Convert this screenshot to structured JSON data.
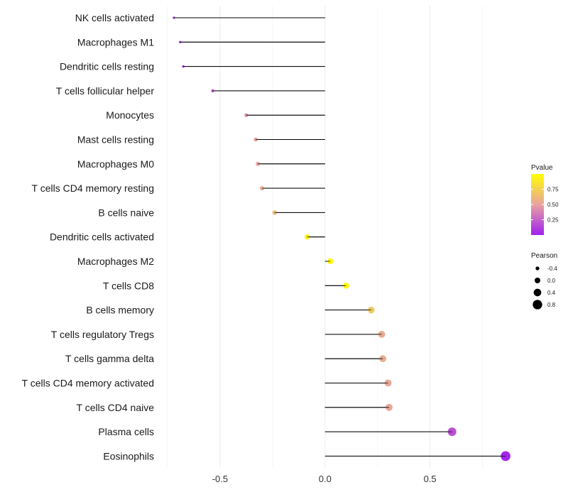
{
  "chart_data": {
    "type": "lollipop",
    "title": "",
    "xlabel": "",
    "ylabel": "",
    "xlim": [
      -0.75,
      0.88
    ],
    "x_ticks": [
      -0.5,
      0.0,
      0.5
    ],
    "x_tick_labels": [
      "-0.5",
      "0.0",
      "0.5"
    ],
    "grid": true,
    "categories": [
      "NK cells activated",
      "Macrophages M1",
      "Dendritic cells resting",
      "T cells follicular helper",
      "Monocytes",
      "Mast cells resting",
      "Macrophages M0",
      "T cells CD4 memory resting",
      "B cells naive",
      "Dendritic cells activated",
      "Macrophages M2",
      "T cells CD8",
      "B cells memory",
      "T cells regulatory  Tregs ",
      "T cells gamma delta",
      "T cells CD4 memory activated",
      "T cells CD4 naive",
      "Plasma cells",
      "Eosinophils"
    ],
    "pearson": [
      -0.72,
      -0.69,
      -0.675,
      -0.535,
      -0.375,
      -0.33,
      -0.32,
      -0.3,
      -0.24,
      -0.085,
      0.025,
      0.1,
      0.22,
      0.27,
      0.275,
      0.3,
      0.305,
      0.605,
      0.86
    ],
    "pvalue": [
      0.01,
      0.04,
      0.06,
      0.2,
      0.45,
      0.5,
      0.52,
      0.55,
      0.62,
      0.93,
      0.99,
      0.97,
      0.7,
      0.55,
      0.55,
      0.52,
      0.52,
      0.18,
      0.02
    ],
    "legend": {
      "pvalue_title": "Pvalue",
      "pvalue_ticks": [
        0.75,
        0.5,
        0.25
      ],
      "pvalue_tick_labels": [
        "0.75",
        "0.50",
        "0.25"
      ],
      "pvalue_range": [
        0.0,
        1.0
      ],
      "pvalue_colors": [
        "#a020f0",
        "#e8a3a0",
        "#ffff00"
      ],
      "pearson_title": "Pearson",
      "pearson_values": [
        -0.4,
        0.0,
        0.4,
        0.8
      ],
      "pearson_labels": [
        "-0.4",
        "0.0",
        "0.4",
        "0.8"
      ],
      "placement": "right"
    }
  }
}
